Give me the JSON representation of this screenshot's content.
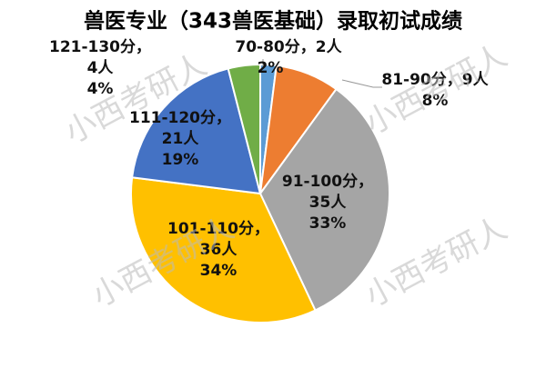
{
  "chart_data": {
    "type": "pie",
    "title": "兽医专业（343兽医基础）录取初试成绩",
    "categories": [
      "70-80分，",
      "81-90分，",
      "91-100分，",
      "101-110分，",
      "111-120分，",
      "121-130分，"
    ],
    "values": [
      2,
      8,
      33,
      34,
      19,
      4
    ],
    "value_labels": [
      "2%",
      "8%",
      "33%",
      "34%",
      "19%",
      "4%"
    ],
    "counts": [
      2,
      9,
      35,
      36,
      21,
      4
    ],
    "count_labels": [
      "2人",
      "9人",
      "35人",
      "36人",
      "21人",
      "4人"
    ],
    "colors": [
      "#5b9bd5",
      "#ed7d31",
      "#a5a5a5",
      "#ffc000",
      "#4472c4",
      "#70ad47"
    ],
    "watermark": "小西考研人"
  }
}
